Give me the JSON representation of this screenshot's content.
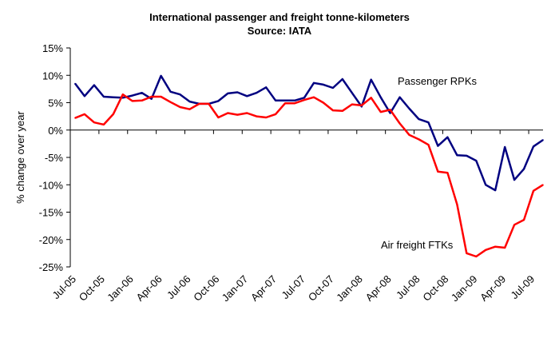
{
  "chart_data": {
    "type": "line",
    "title": "International passenger and freight tonne-kilometers",
    "subtitle": "Source: IATA",
    "xlabel": "",
    "ylabel": "% change over year",
    "ylim": [
      -25,
      15
    ],
    "yticks": [
      "15%",
      "10%",
      "5%",
      "0%",
      "-5%",
      "-10%",
      "-15%",
      "-20%",
      "-25%"
    ],
    "ytick_values": [
      15,
      10,
      5,
      0,
      -5,
      -10,
      -15,
      -20,
      -25
    ],
    "grid": false,
    "x": [
      "Jul-05",
      "Aug-05",
      "Sep-05",
      "Oct-05",
      "Nov-05",
      "Dec-05",
      "Jan-06",
      "Feb-06",
      "Mar-06",
      "Apr-06",
      "May-06",
      "Jun-06",
      "Jul-06",
      "Aug-06",
      "Sep-06",
      "Oct-06",
      "Nov-06",
      "Dec-06",
      "Jan-07",
      "Feb-07",
      "Mar-07",
      "Apr-07",
      "May-07",
      "Jun-07",
      "Jul-07",
      "Aug-07",
      "Sep-07",
      "Oct-07",
      "Nov-07",
      "Dec-07",
      "Jan-08",
      "Feb-08",
      "Mar-08",
      "Apr-08",
      "May-08",
      "Jun-08",
      "Jul-08",
      "Aug-08",
      "Sep-08",
      "Oct-08",
      "Nov-08",
      "Dec-08",
      "Jan-09",
      "Feb-09",
      "Mar-09",
      "Apr-09",
      "May-09",
      "Jun-09",
      "Jul-09",
      "Aug-09"
    ],
    "xtick_labels": [
      "Jul-05",
      "Oct-05",
      "Jan-06",
      "Apr-06",
      "Jul-06",
      "Oct-06",
      "Jan-07",
      "Apr-07",
      "Jul-07",
      "Oct-07",
      "Jan-08",
      "Apr-08",
      "Jul-08",
      "Oct-08",
      "Jan-09",
      "Apr-09",
      "Jul-09"
    ],
    "series": [
      {
        "name": "Passenger RPKs",
        "color": "#000080",
        "values": [
          8.5,
          6.2,
          8.2,
          6.1,
          6.0,
          5.9,
          6.3,
          6.8,
          5.7,
          9.9,
          7.0,
          6.5,
          5.2,
          4.8,
          4.8,
          5.3,
          6.7,
          6.9,
          6.2,
          6.8,
          7.8,
          5.4,
          5.4,
          5.4,
          5.9,
          8.6,
          8.3,
          7.7,
          9.3,
          6.8,
          4.3,
          9.2,
          6.0,
          3.1,
          6.0,
          3.9,
          2.0,
          1.4,
          -2.9,
          -1.3,
          -4.6,
          -4.7,
          -5.6,
          -10.0,
          -11.0,
          -3.1,
          -9.1,
          -7.1,
          -3.0,
          -1.8
        ]
      },
      {
        "name": "Air freight FTKs",
        "color": "#ff0000",
        "values": [
          2.2,
          2.9,
          1.4,
          1.0,
          2.9,
          6.5,
          5.3,
          5.4,
          6.1,
          6.1,
          5.1,
          4.2,
          3.8,
          4.8,
          4.8,
          2.3,
          3.1,
          2.8,
          3.1,
          2.5,
          2.3,
          2.9,
          4.9,
          4.9,
          5.5,
          6.0,
          5.0,
          3.6,
          3.5,
          4.7,
          4.5,
          5.9,
          3.3,
          3.7,
          1.2,
          -0.9,
          -1.7,
          -2.7,
          -7.6,
          -7.8,
          -13.6,
          -22.5,
          -23.1,
          -21.9,
          -21.3,
          -21.5,
          -17.3,
          -16.4,
          -11.1,
          -10.0
        ]
      }
    ]
  }
}
